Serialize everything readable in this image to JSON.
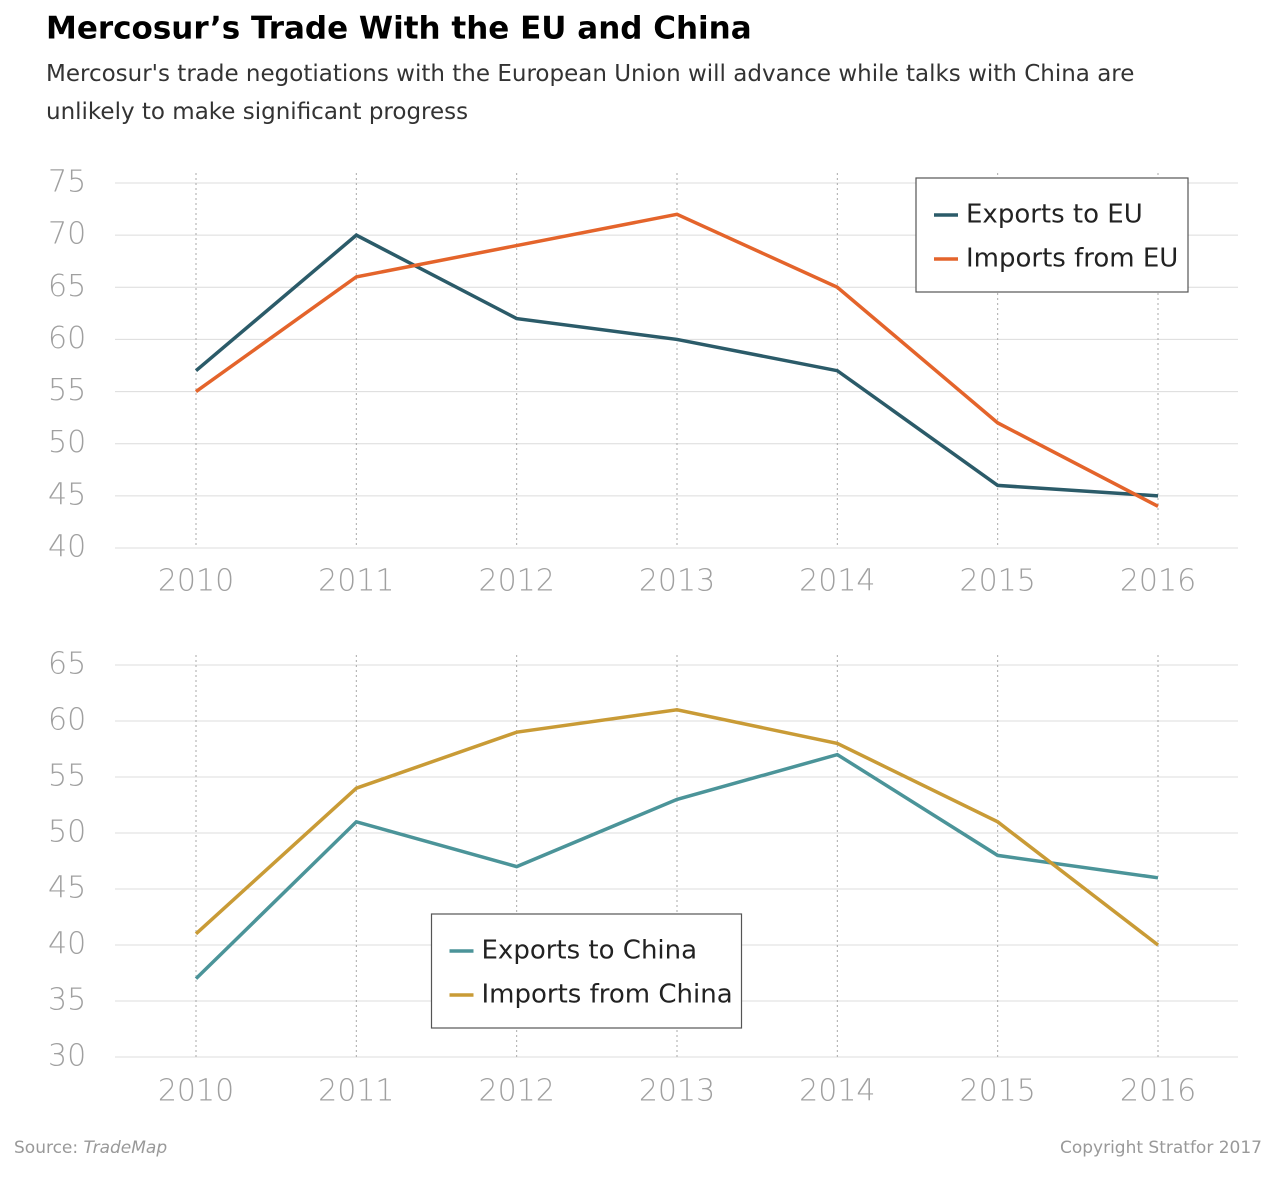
{
  "title": "Mercosur’s Trade With the EU and China",
  "subtitle": "Mercosur's trade negotiations with the European Union will advance while talks with China are unlikely to make significant progress",
  "source_label": "Source:",
  "source": "TradeMap",
  "copyright": "Copyright Stratfor 2017",
  "chart_data": [
    {
      "type": "line",
      "categories": [
        "2010",
        "2011",
        "2012",
        "2013",
        "2014",
        "2015",
        "2016"
      ],
      "series": [
        {
          "name": "Exports to EU",
          "color": "#2b5b69",
          "values": [
            57,
            70,
            62,
            60,
            57,
            46,
            45
          ]
        },
        {
          "name": "Imports from EU",
          "color": "#e4642b",
          "values": [
            55,
            66,
            69,
            72,
            65,
            52,
            44
          ]
        }
      ],
      "ylim": [
        40,
        75
      ],
      "yticks": [
        40,
        45,
        50,
        55,
        60,
        65,
        70,
        75
      ],
      "grid": true,
      "legend": "upper right"
    },
    {
      "type": "line",
      "categories": [
        "2010",
        "2011",
        "2012",
        "2013",
        "2014",
        "2015",
        "2016"
      ],
      "series": [
        {
          "name": "Exports to China",
          "color": "#4b9499",
          "values": [
            37,
            51,
            47,
            53,
            57,
            48,
            46
          ]
        },
        {
          "name": "Imports from China",
          "color": "#c99b36",
          "values": [
            41,
            54,
            59,
            61,
            58,
            51,
            40
          ]
        }
      ],
      "ylim": [
        30,
        65
      ],
      "yticks": [
        30,
        35,
        40,
        45,
        50,
        55,
        60,
        65
      ],
      "grid": true,
      "legend": "lower center"
    }
  ]
}
